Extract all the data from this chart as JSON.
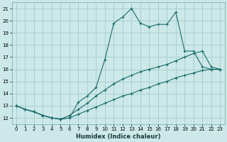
{
  "title": "",
  "xlabel": "Humidex (Indice chaleur)",
  "ylabel": "",
  "bg_color": "#cce8e8",
  "grid_color": "#a8d0d0",
  "line_color": "#1a6b6b",
  "xlim": [
    -0.5,
    23.5
  ],
  "ylim": [
    11.5,
    21.5
  ],
  "xticks": [
    0,
    1,
    2,
    3,
    4,
    5,
    6,
    7,
    8,
    9,
    10,
    11,
    12,
    13,
    14,
    15,
    16,
    17,
    18,
    19,
    20,
    21,
    22,
    23
  ],
  "yticks": [
    12,
    13,
    14,
    15,
    16,
    17,
    18,
    19,
    20,
    21
  ],
  "line1_x": [
    0,
    1,
    2,
    3,
    4,
    5,
    6,
    7,
    8,
    9,
    10,
    11,
    12,
    13,
    14,
    15,
    16,
    17,
    18,
    19,
    20,
    21,
    22,
    23
  ],
  "line1_y": [
    13.0,
    12.7,
    12.5,
    12.2,
    12.0,
    11.9,
    12.0,
    13.3,
    13.8,
    14.5,
    16.8,
    19.8,
    20.3,
    21.0,
    19.8,
    19.5,
    19.7,
    19.7,
    20.7,
    17.5,
    17.5,
    16.2,
    16.0,
    16.0
  ],
  "line2_x": [
    0,
    1,
    2,
    3,
    4,
    5,
    6,
    7,
    8,
    9,
    10,
    11,
    12,
    13,
    14,
    15,
    16,
    17,
    18,
    19,
    20,
    21,
    22,
    23
  ],
  "line2_y": [
    13.0,
    12.7,
    12.5,
    12.2,
    12.0,
    11.9,
    12.2,
    12.7,
    13.2,
    13.8,
    14.3,
    14.8,
    15.2,
    15.5,
    15.8,
    16.0,
    16.2,
    16.4,
    16.7,
    17.0,
    17.3,
    17.5,
    16.2,
    16.0
  ],
  "line3_x": [
    0,
    1,
    2,
    3,
    4,
    5,
    6,
    7,
    8,
    9,
    10,
    11,
    12,
    13,
    14,
    15,
    16,
    17,
    18,
    19,
    20,
    21,
    22,
    23
  ],
  "line3_y": [
    13.0,
    12.7,
    12.5,
    12.2,
    12.0,
    11.9,
    12.0,
    12.3,
    12.6,
    12.9,
    13.2,
    13.5,
    13.8,
    14.0,
    14.3,
    14.5,
    14.8,
    15.0,
    15.3,
    15.5,
    15.7,
    15.9,
    16.0,
    16.0
  ]
}
